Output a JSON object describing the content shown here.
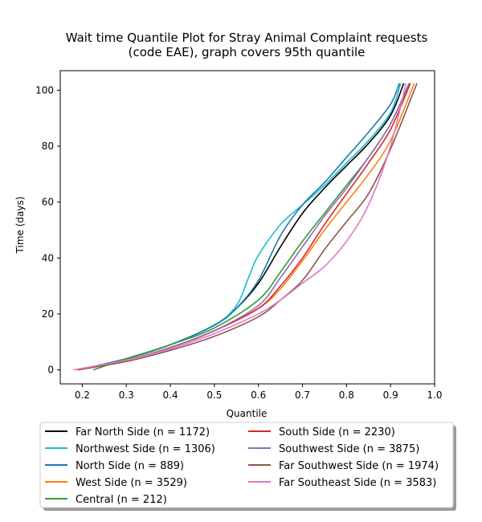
{
  "chart_data": {
    "type": "line",
    "title_lines": [
      "Wait time Quantile Plot for Stray Animal Complaint  requests",
      "(code EAE), graph covers 95th quantile"
    ],
    "xlabel": "Quantile",
    "ylabel": "Time (days)",
    "xlim": [
      0.15,
      1.0
    ],
    "ylim": [
      -5,
      107
    ],
    "xticks": [
      0.2,
      0.3,
      0.4,
      0.5,
      0.6,
      0.7,
      0.8,
      0.9,
      1.0
    ],
    "xtick_labels": [
      "0.2",
      "0.3",
      "0.4",
      "0.5",
      "0.6",
      "0.7",
      "0.8",
      "0.9",
      "1.0"
    ],
    "yticks": [
      0,
      20,
      40,
      60,
      80,
      100
    ],
    "ytick_labels": [
      "0",
      "20",
      "40",
      "60",
      "80",
      "100"
    ],
    "grid": false,
    "legend_position": "below plot, two columns",
    "series": [
      {
        "name": "Far North Side (n = 1172)",
        "color": "#000000",
        "points": [
          [
            0.19,
            0
          ],
          [
            0.3,
            4
          ],
          [
            0.4,
            9
          ],
          [
            0.5,
            16
          ],
          [
            0.55,
            22
          ],
          [
            0.6,
            31
          ],
          [
            0.65,
            44
          ],
          [
            0.7,
            56
          ],
          [
            0.75,
            65
          ],
          [
            0.8,
            73
          ],
          [
            0.85,
            81
          ],
          [
            0.9,
            91
          ],
          [
            0.93,
            102.5
          ]
        ]
      },
      {
        "name": "Northwest Side (n = 1306)",
        "color": "#17becf",
        "points": [
          [
            0.19,
            0
          ],
          [
            0.3,
            4
          ],
          [
            0.4,
            9
          ],
          [
            0.5,
            16
          ],
          [
            0.55,
            23
          ],
          [
            0.58,
            34
          ],
          [
            0.6,
            41
          ],
          [
            0.65,
            52
          ],
          [
            0.7,
            59
          ],
          [
            0.75,
            66
          ],
          [
            0.8,
            74
          ],
          [
            0.85,
            82
          ],
          [
            0.9,
            92
          ],
          [
            0.923,
            102.5
          ]
        ]
      },
      {
        "name": "North Side (n = 889)",
        "color": "#1f77b4",
        "points": [
          [
            0.19,
            0
          ],
          [
            0.3,
            4
          ],
          [
            0.4,
            9
          ],
          [
            0.5,
            16
          ],
          [
            0.55,
            22
          ],
          [
            0.6,
            32
          ],
          [
            0.65,
            48
          ],
          [
            0.7,
            59
          ],
          [
            0.75,
            67
          ],
          [
            0.8,
            76
          ],
          [
            0.85,
            85
          ],
          [
            0.9,
            95
          ],
          [
            0.92,
            102.5
          ]
        ]
      },
      {
        "name": "West Side (n = 3529)",
        "color": "#ff7f0e",
        "points": [
          [
            0.19,
            0
          ],
          [
            0.3,
            3.5
          ],
          [
            0.4,
            8
          ],
          [
            0.5,
            14
          ],
          [
            0.6,
            22
          ],
          [
            0.65,
            29
          ],
          [
            0.7,
            39
          ],
          [
            0.75,
            50
          ],
          [
            0.8,
            60
          ],
          [
            0.85,
            70
          ],
          [
            0.9,
            82
          ],
          [
            0.954,
            102.5
          ]
        ]
      },
      {
        "name": "Central (n = 212)",
        "color": "#2ca02c",
        "points": [
          [
            0.225,
            0
          ],
          [
            0.3,
            4
          ],
          [
            0.4,
            9
          ],
          [
            0.5,
            15
          ],
          [
            0.6,
            25
          ],
          [
            0.65,
            35
          ],
          [
            0.7,
            46
          ],
          [
            0.75,
            56
          ],
          [
            0.8,
            66
          ],
          [
            0.85,
            76
          ],
          [
            0.9,
            88
          ],
          [
            0.943,
            102.5
          ]
        ]
      },
      {
        "name": "South Side (n = 2230)",
        "color": "#d62728",
        "points": [
          [
            0.19,
            0
          ],
          [
            0.3,
            3.5
          ],
          [
            0.4,
            8
          ],
          [
            0.5,
            14
          ],
          [
            0.6,
            22
          ],
          [
            0.65,
            30
          ],
          [
            0.7,
            40
          ],
          [
            0.75,
            52
          ],
          [
            0.8,
            63
          ],
          [
            0.85,
            74
          ],
          [
            0.9,
            86
          ],
          [
            0.945,
            102.5
          ]
        ]
      },
      {
        "name": "Southwest Side (n = 3875)",
        "color": "#9467bd",
        "points": [
          [
            0.19,
            0
          ],
          [
            0.3,
            3.5
          ],
          [
            0.4,
            8
          ],
          [
            0.5,
            14
          ],
          [
            0.6,
            23
          ],
          [
            0.65,
            33
          ],
          [
            0.7,
            44
          ],
          [
            0.75,
            55
          ],
          [
            0.8,
            65
          ],
          [
            0.85,
            76
          ],
          [
            0.9,
            88
          ],
          [
            0.942,
            102.5
          ]
        ]
      },
      {
        "name": "Far Southwest Side (n = 1974)",
        "color": "#8c564b",
        "points": [
          [
            0.19,
            0
          ],
          [
            0.3,
            3
          ],
          [
            0.4,
            7
          ],
          [
            0.5,
            12
          ],
          [
            0.6,
            19
          ],
          [
            0.65,
            25
          ],
          [
            0.7,
            32
          ],
          [
            0.75,
            43
          ],
          [
            0.8,
            53
          ],
          [
            0.85,
            63
          ],
          [
            0.9,
            79
          ],
          [
            0.96,
            102.5
          ]
        ]
      },
      {
        "name": "Far Southeast Side (n = 3583)",
        "color": "#e377c2",
        "points": [
          [
            0.18,
            0
          ],
          [
            0.3,
            3.5
          ],
          [
            0.4,
            7.5
          ],
          [
            0.5,
            13
          ],
          [
            0.6,
            20
          ],
          [
            0.65,
            25
          ],
          [
            0.7,
            31
          ],
          [
            0.75,
            37
          ],
          [
            0.8,
            46
          ],
          [
            0.85,
            59
          ],
          [
            0.9,
            80
          ],
          [
            0.935,
            102.5
          ]
        ]
      }
    ]
  }
}
